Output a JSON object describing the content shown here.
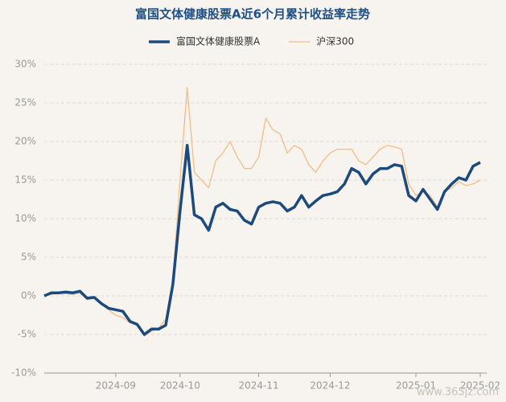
{
  "chart_data": {
    "type": "line",
    "title": "富国文体健康股票A近6个月累计收益率走势",
    "categories": [
      null,
      null,
      null,
      null,
      null,
      null,
      null,
      null,
      null,
      null,
      "2024-09",
      null,
      null,
      null,
      null,
      null,
      null,
      null,
      null,
      "2024-10",
      null,
      null,
      null,
      null,
      null,
      null,
      null,
      null,
      null,
      null,
      "2024-11",
      null,
      null,
      null,
      null,
      null,
      null,
      null,
      null,
      null,
      "2024-12",
      null,
      null,
      null,
      null,
      null,
      null,
      null,
      null,
      null,
      null,
      null,
      "2025-01",
      null,
      null,
      null,
      null,
      null,
      null,
      null,
      null,
      "2025-02"
    ],
    "series": [
      {
        "name": "富国文体健康股票A",
        "color": "#1d4a7c",
        "width": 3.5,
        "values": [
          0,
          0.4,
          0.4,
          0.5,
          0.4,
          0.6,
          -0.3,
          -0.2,
          -1.0,
          -1.6,
          -1.8,
          -2.0,
          -3.3,
          -3.7,
          -5.0,
          -4.3,
          -4.3,
          -3.8,
          1.5,
          11,
          19.5,
          10.5,
          10,
          8.5,
          11.5,
          12,
          11.2,
          11,
          9.8,
          9.3,
          11.5,
          12,
          12.2,
          12,
          11,
          11.5,
          13,
          11.5,
          12.3,
          13,
          13.2,
          13.5,
          14.5,
          16.5,
          16,
          14.5,
          15.8,
          16.5,
          16.5,
          17,
          16.8,
          13,
          12.3,
          13.8,
          12.5,
          11.2,
          13.5,
          14.5,
          15.3,
          15,
          16.8,
          17.3
        ]
      },
      {
        "name": "沪深300",
        "color": "#f2bd86",
        "width": 1.3,
        "values": [
          0,
          0.2,
          0.3,
          0.3,
          0.2,
          0.4,
          -0.5,
          -0.3,
          -1.0,
          -1.8,
          -2.5,
          -2.8,
          -3.5,
          -3.8,
          -5.2,
          -4.6,
          -4.2,
          -3.0,
          2,
          15,
          27,
          16,
          15,
          14,
          17.5,
          18.5,
          20,
          18,
          16.5,
          16.5,
          18,
          23,
          21.5,
          21,
          18.5,
          19.5,
          19,
          17,
          16,
          17.5,
          18.5,
          19,
          19,
          19,
          17.5,
          17,
          18,
          19,
          19.5,
          19.3,
          19,
          14.5,
          13,
          13.5,
          13,
          11.5,
          13.5,
          14,
          14.8,
          14.3,
          14.5,
          15
        ]
      }
    ],
    "ylim": [
      -10,
      30
    ],
    "yticks": [
      {
        "value": -10,
        "label": "-10%"
      },
      {
        "value": -5,
        "label": "-5%"
      },
      {
        "value": 0,
        "label": "0%"
      },
      {
        "value": 5,
        "label": "5%"
      },
      {
        "value": 10,
        "label": "10%"
      },
      {
        "value": 15,
        "label": "15%"
      },
      {
        "value": 20,
        "label": "20%"
      },
      {
        "value": 25,
        "label": "25%"
      },
      {
        "value": 30,
        "label": "30%"
      }
    ],
    "grid": true,
    "legend": "top",
    "watermark": "www.365jz.com"
  }
}
